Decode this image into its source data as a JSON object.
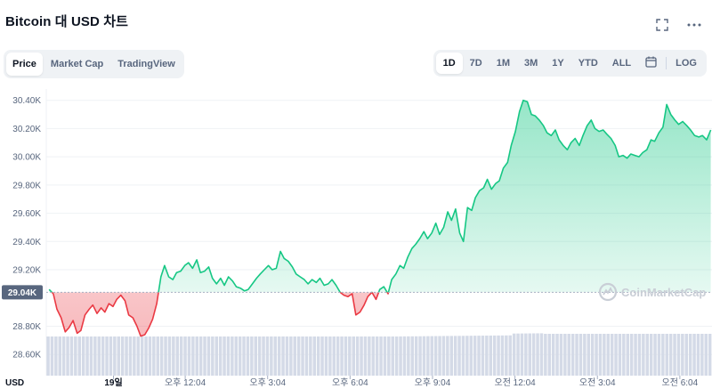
{
  "header": {
    "title": "Bitcoin 대 USD 차트"
  },
  "icons": {
    "expand": "expand-icon",
    "more": "more-icon",
    "calendar": "calendar-icon",
    "logo": "coinmarketcap-logo-icon"
  },
  "view_tabs": [
    {
      "label": "Price",
      "active": true
    },
    {
      "label": "Market Cap",
      "active": false
    },
    {
      "label": "TradingView",
      "active": false
    }
  ],
  "ranges": [
    {
      "label": "1D",
      "active": true
    },
    {
      "label": "7D",
      "active": false
    },
    {
      "label": "1M",
      "active": false
    },
    {
      "label": "3M",
      "active": false
    },
    {
      "label": "1Y",
      "active": false
    },
    {
      "label": "YTD",
      "active": false
    },
    {
      "label": "ALL",
      "active": false
    }
  ],
  "log_label": "LOG",
  "watermark": "CoinMarketCap",
  "colors": {
    "up": "#16c784",
    "down": "#ea3943",
    "grid": "#eff2f5",
    "volume": "#cfd6e4",
    "ref": "#a6b0c3"
  },
  "chart_data": {
    "type": "line",
    "currency": "USD",
    "reference_price": 29040,
    "reference_label": "29.04K",
    "ylim": [
      28450,
      30480
    ],
    "y_ticks": [
      {
        "value": 30400,
        "label": "30.40K"
      },
      {
        "value": 30200,
        "label": "30.20K"
      },
      {
        "value": 30000,
        "label": "30.00K"
      },
      {
        "value": 29800,
        "label": "29.80K"
      },
      {
        "value": 29600,
        "label": "29.60K"
      },
      {
        "value": 29400,
        "label": "29.40K"
      },
      {
        "value": 29200,
        "label": "29.20K"
      },
      {
        "value": 28800,
        "label": "28.80K"
      },
      {
        "value": 28600,
        "label": "28.60K"
      }
    ],
    "x_ticks": [
      {
        "t": 0.13,
        "label": "19일"
      },
      {
        "t": 1.87,
        "label": "오후 12:04"
      },
      {
        "t": 3.87,
        "label": "오후 3:04"
      },
      {
        "t": 5.87,
        "label": "오후 6:04"
      },
      {
        "t": 7.87,
        "label": "오후 9:04"
      },
      {
        "t": 9.87,
        "label": "오전 12:04"
      },
      {
        "t": 11.87,
        "label": "오전 3:04"
      },
      {
        "t": 13.87,
        "label": "오전 6:04"
      }
    ],
    "price": [
      [
        -1.43,
        29060
      ],
      [
        -1.33,
        29030
      ],
      [
        -1.24,
        28920
      ],
      [
        -1.14,
        28860
      ],
      [
        -1.04,
        28760
      ],
      [
        -0.95,
        28790
      ],
      [
        -0.85,
        28840
      ],
      [
        -0.75,
        28750
      ],
      [
        -0.66,
        28770
      ],
      [
        -0.56,
        28880
      ],
      [
        -0.46,
        28920
      ],
      [
        -0.37,
        28950
      ],
      [
        -0.27,
        28890
      ],
      [
        -0.17,
        28930
      ],
      [
        -0.08,
        28900
      ],
      [
        0.02,
        28960
      ],
      [
        0.12,
        28940
      ],
      [
        0.21,
        28990
      ],
      [
        0.31,
        29020
      ],
      [
        0.41,
        28980
      ],
      [
        0.5,
        28880
      ],
      [
        0.6,
        28860
      ],
      [
        0.7,
        28800
      ],
      [
        0.79,
        28730
      ],
      [
        0.89,
        28740
      ],
      [
        0.99,
        28790
      ],
      [
        1.08,
        28850
      ],
      [
        1.18,
        28960
      ],
      [
        1.28,
        29150
      ],
      [
        1.37,
        29230
      ],
      [
        1.47,
        29150
      ],
      [
        1.57,
        29130
      ],
      [
        1.66,
        29180
      ],
      [
        1.76,
        29190
      ],
      [
        1.86,
        29230
      ],
      [
        1.95,
        29250
      ],
      [
        2.05,
        29210
      ],
      [
        2.15,
        29270
      ],
      [
        2.24,
        29180
      ],
      [
        2.34,
        29190
      ],
      [
        2.44,
        29220
      ],
      [
        2.53,
        29140
      ],
      [
        2.63,
        29100
      ],
      [
        2.73,
        29140
      ],
      [
        2.82,
        29090
      ],
      [
        2.92,
        29150
      ],
      [
        3.02,
        29120
      ],
      [
        3.11,
        29080
      ],
      [
        3.21,
        29070
      ],
      [
        3.31,
        29050
      ],
      [
        3.4,
        29060
      ],
      [
        3.5,
        29100
      ],
      [
        3.6,
        29140
      ],
      [
        3.69,
        29170
      ],
      [
        3.79,
        29200
      ],
      [
        3.89,
        29230
      ],
      [
        3.98,
        29200
      ],
      [
        4.08,
        29210
      ],
      [
        4.18,
        29330
      ],
      [
        4.27,
        29280
      ],
      [
        4.37,
        29260
      ],
      [
        4.47,
        29220
      ],
      [
        4.56,
        29170
      ],
      [
        4.66,
        29150
      ],
      [
        4.76,
        29130
      ],
      [
        4.85,
        29100
      ],
      [
        4.95,
        29130
      ],
      [
        5.05,
        29110
      ],
      [
        5.14,
        29140
      ],
      [
        5.24,
        29090
      ],
      [
        5.34,
        29100
      ],
      [
        5.43,
        29130
      ],
      [
        5.53,
        29090
      ],
      [
        5.63,
        29040
      ],
      [
        5.72,
        29020
      ],
      [
        5.82,
        29010
      ],
      [
        5.92,
        29030
      ],
      [
        6.01,
        28880
      ],
      [
        6.11,
        28900
      ],
      [
        6.21,
        28950
      ],
      [
        6.3,
        29010
      ],
      [
        6.4,
        29040
      ],
      [
        6.5,
        28990
      ],
      [
        6.59,
        29060
      ],
      [
        6.69,
        29080
      ],
      [
        6.79,
        29030
      ],
      [
        6.88,
        29130
      ],
      [
        6.98,
        29170
      ],
      [
        7.08,
        29230
      ],
      [
        7.17,
        29210
      ],
      [
        7.27,
        29290
      ],
      [
        7.37,
        29350
      ],
      [
        7.46,
        29380
      ],
      [
        7.56,
        29420
      ],
      [
        7.66,
        29470
      ],
      [
        7.75,
        29420
      ],
      [
        7.85,
        29460
      ],
      [
        7.95,
        29530
      ],
      [
        8.04,
        29450
      ],
      [
        8.14,
        29500
      ],
      [
        8.24,
        29610
      ],
      [
        8.33,
        29550
      ],
      [
        8.43,
        29630
      ],
      [
        8.53,
        29460
      ],
      [
        8.62,
        29400
      ],
      [
        8.72,
        29640
      ],
      [
        8.82,
        29620
      ],
      [
        8.91,
        29710
      ],
      [
        9.01,
        29760
      ],
      [
        9.11,
        29780
      ],
      [
        9.2,
        29840
      ],
      [
        9.3,
        29770
      ],
      [
        9.4,
        29810
      ],
      [
        9.49,
        29830
      ],
      [
        9.59,
        29920
      ],
      [
        9.69,
        29960
      ],
      [
        9.78,
        30080
      ],
      [
        9.88,
        30180
      ],
      [
        9.98,
        30320
      ],
      [
        10.07,
        30400
      ],
      [
        10.17,
        30390
      ],
      [
        10.27,
        30300
      ],
      [
        10.36,
        30290
      ],
      [
        10.46,
        30260
      ],
      [
        10.56,
        30220
      ],
      [
        10.65,
        30170
      ],
      [
        10.75,
        30150
      ],
      [
        10.85,
        30190
      ],
      [
        10.94,
        30120
      ],
      [
        11.04,
        30080
      ],
      [
        11.14,
        30050
      ],
      [
        11.23,
        30100
      ],
      [
        11.33,
        30130
      ],
      [
        11.43,
        30080
      ],
      [
        11.52,
        30150
      ],
      [
        11.62,
        30220
      ],
      [
        11.72,
        30260
      ],
      [
        11.81,
        30200
      ],
      [
        11.91,
        30180
      ],
      [
        12.01,
        30190
      ],
      [
        12.1,
        30160
      ],
      [
        12.2,
        30130
      ],
      [
        12.3,
        30080
      ],
      [
        12.39,
        30000
      ],
      [
        12.49,
        30010
      ],
      [
        12.59,
        29990
      ],
      [
        12.68,
        30020
      ],
      [
        12.78,
        30010
      ],
      [
        12.88,
        30000
      ],
      [
        12.97,
        30030
      ],
      [
        13.07,
        30050
      ],
      [
        13.17,
        30120
      ],
      [
        13.26,
        30110
      ],
      [
        13.36,
        30170
      ],
      [
        13.46,
        30210
      ],
      [
        13.55,
        30370
      ],
      [
        13.65,
        30300
      ],
      [
        13.75,
        30260
      ],
      [
        13.84,
        30230
      ],
      [
        13.94,
        30250
      ],
      [
        14.04,
        30220
      ],
      [
        14.13,
        30190
      ],
      [
        14.23,
        30150
      ],
      [
        14.33,
        30140
      ],
      [
        14.42,
        30150
      ],
      [
        14.52,
        30120
      ],
      [
        14.62,
        30190
      ]
    ]
  }
}
